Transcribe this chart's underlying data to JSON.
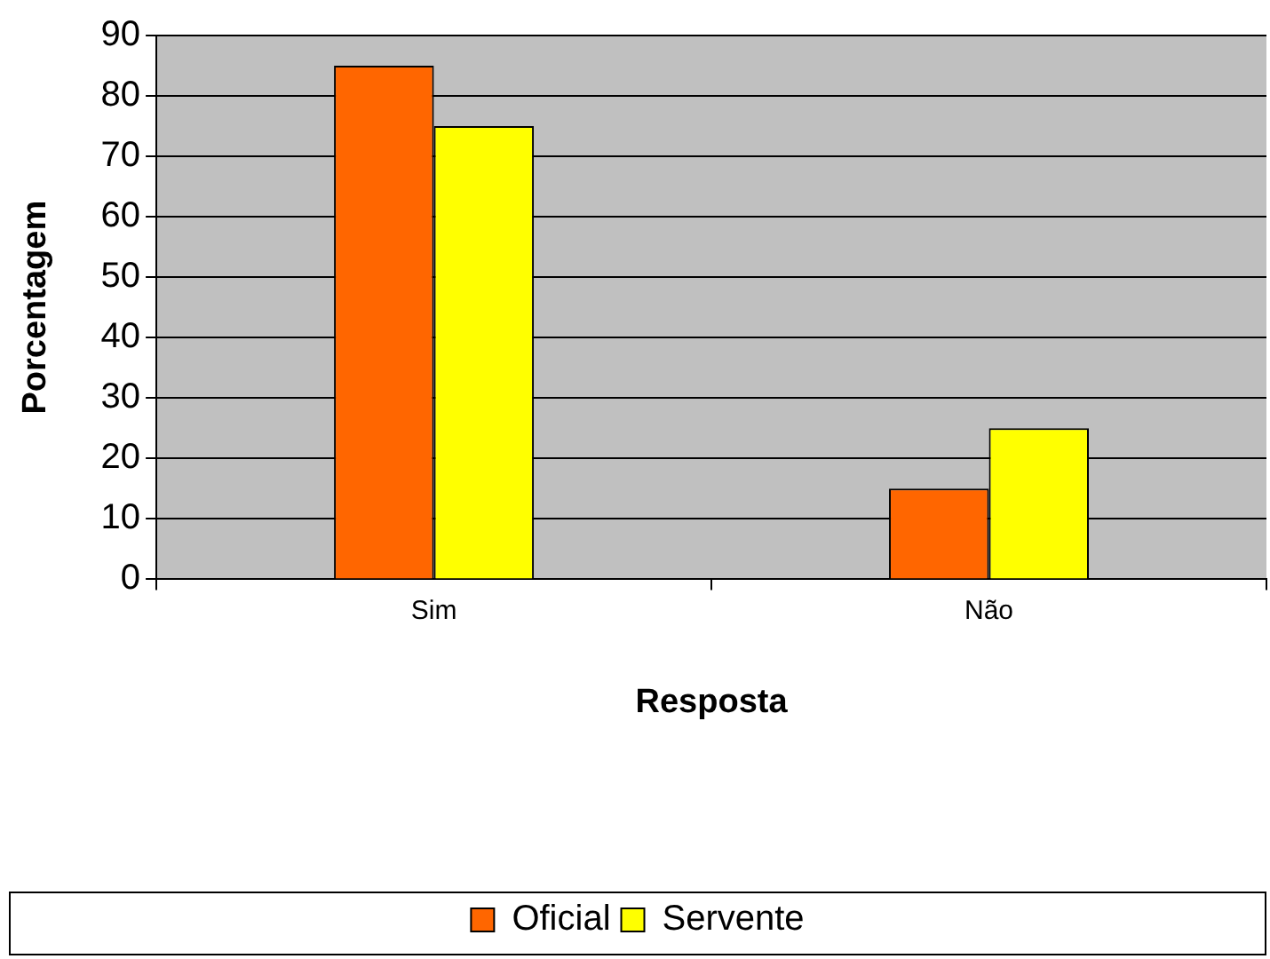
{
  "chart_data": {
    "type": "bar",
    "xlabel": "Resposta",
    "ylabel": "Porcentagem",
    "categories": [
      "Sim",
      "Não"
    ],
    "series": [
      {
        "name": "Oficial",
        "color": "#ff6600",
        "values": [
          85,
          15
        ]
      },
      {
        "name": "Servente",
        "color": "#ffff00",
        "values": [
          75,
          25
        ]
      }
    ],
    "ylim": [
      0,
      90
    ],
    "yticks": [
      0,
      10,
      20,
      30,
      40,
      50,
      60,
      70,
      80,
      90
    ],
    "grid": "y",
    "legend": "bottom"
  }
}
